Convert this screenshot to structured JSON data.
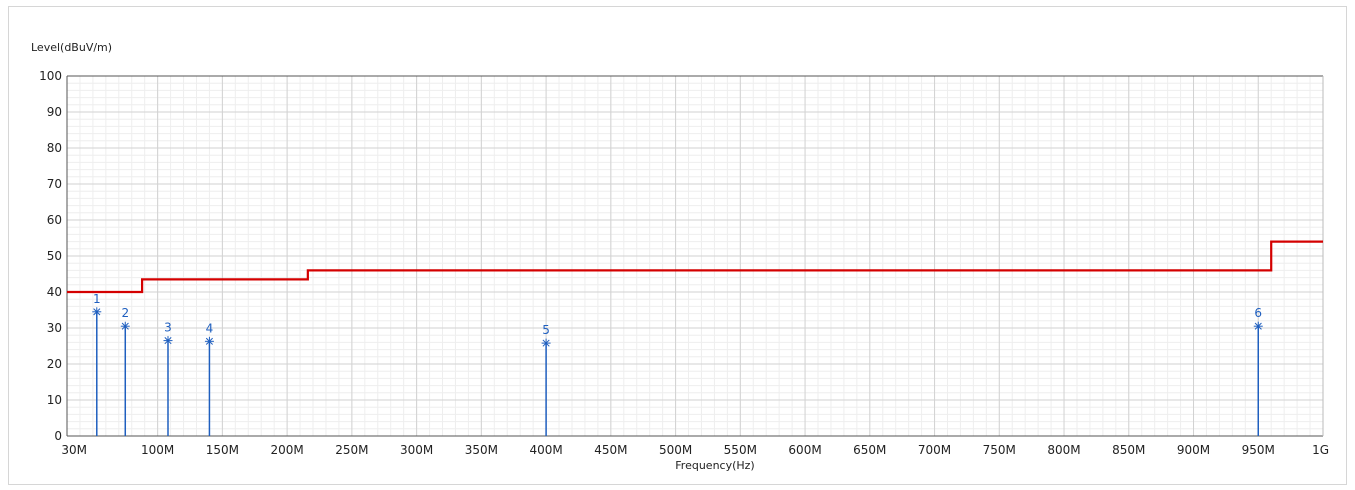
{
  "chart_data": {
    "type": "line",
    "ylabel": "Level(dBuV/m)",
    "xlabel": "Frequency(Hz)",
    "xlim_mhz": [
      30,
      1000
    ],
    "ylim": [
      0,
      100
    ],
    "y_ticks": [
      0,
      10,
      20,
      30,
      40,
      50,
      60,
      70,
      80,
      90,
      100
    ],
    "x_ticks": [
      {
        "mhz": 30,
        "label": "30M"
      },
      {
        "mhz": 100,
        "label": "100M"
      },
      {
        "mhz": 150,
        "label": "150M"
      },
      {
        "mhz": 200,
        "label": "200M"
      },
      {
        "mhz": 250,
        "label": "250M"
      },
      {
        "mhz": 300,
        "label": "300M"
      },
      {
        "mhz": 350,
        "label": "350M"
      },
      {
        "mhz": 400,
        "label": "400M"
      },
      {
        "mhz": 450,
        "label": "450M"
      },
      {
        "mhz": 500,
        "label": "500M"
      },
      {
        "mhz": 550,
        "label": "550M"
      },
      {
        "mhz": 600,
        "label": "600M"
      },
      {
        "mhz": 650,
        "label": "650M"
      },
      {
        "mhz": 700,
        "label": "700M"
      },
      {
        "mhz": 750,
        "label": "750M"
      },
      {
        "mhz": 800,
        "label": "800M"
      },
      {
        "mhz": 850,
        "label": "850M"
      },
      {
        "mhz": 900,
        "label": "900M"
      },
      {
        "mhz": 950,
        "label": "950M"
      },
      {
        "mhz": 1000,
        "label": "1G"
      }
    ],
    "grid": true,
    "limit_line": {
      "color": "#d40000",
      "points_mhz_db": [
        [
          30,
          40
        ],
        [
          88,
          40
        ],
        [
          88,
          43.5
        ],
        [
          216,
          43.5
        ],
        [
          216,
          46
        ],
        [
          960,
          46
        ],
        [
          960,
          54
        ],
        [
          1000,
          54
        ]
      ]
    },
    "markers": {
      "color": "#1f5fbf",
      "points": [
        {
          "label": "1",
          "mhz": 53,
          "db": 34.5
        },
        {
          "label": "2",
          "mhz": 75,
          "db": 30.5
        },
        {
          "label": "3",
          "mhz": 108,
          "db": 26.5
        },
        {
          "label": "4",
          "mhz": 140,
          "db": 26.3
        },
        {
          "label": "5",
          "mhz": 400,
          "db": 25.8
        },
        {
          "label": "6",
          "mhz": 950,
          "db": 30.5
        }
      ]
    }
  }
}
